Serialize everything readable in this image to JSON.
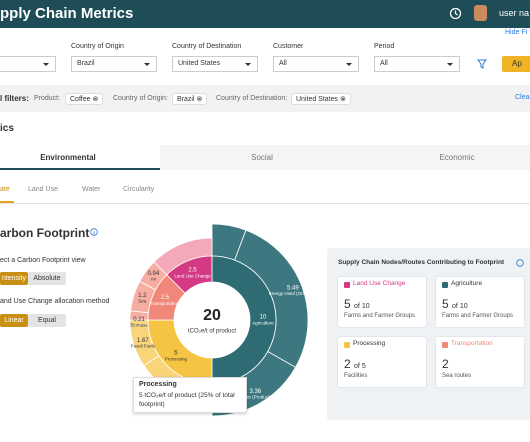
{
  "header": {
    "title": "pply Chain Metrics",
    "user": "user na"
  },
  "filters": {
    "hide": "Hide Fi",
    "fields": [
      {
        "label": "",
        "value": ""
      },
      {
        "label": "Country of Origin",
        "value": "Brazil"
      },
      {
        "label": "Country of Destination",
        "value": "United States"
      },
      {
        "label": "Customer",
        "value": "All"
      },
      {
        "label": "Period",
        "value": "All"
      }
    ],
    "apply": "Ap"
  },
  "applied": {
    "title": "l filters:",
    "chips": [
      {
        "key": "Product:",
        "value": "Coffee"
      },
      {
        "key": "Country of Origin:",
        "value": "Brazil"
      },
      {
        "key": "Country of Destination:",
        "value": "United States"
      }
    ],
    "clear": "Clea"
  },
  "section": "ics",
  "tabs": [
    "Environmental",
    "Social",
    "Economic"
  ],
  "subtabs": [
    "ate",
    "Land Use",
    "Water",
    "Circularity"
  ],
  "footprint": {
    "title": "arbon Footprint",
    "view_label": "ect a Carbon Footprint view",
    "view_options": [
      "ntensity",
      "Absolute"
    ],
    "method_label": "and Use Change allocation method",
    "method_options": [
      "Linear",
      "Equal"
    ]
  },
  "sunburst": {
    "total": "20",
    "unit": "tCO₂e/t of product",
    "segments": [
      {
        "label": "Agriculture",
        "value": 10,
        "color": "#2f6b73",
        "outer": "#3d7880",
        "children": [
          {
            "label": "Energy Used (On Farm)",
            "value": 5.49
          },
          {
            "label": "Fertiliser (Production)",
            "value": 3.36
          }
        ]
      },
      {
        "label": "Processing",
        "value": 5,
        "color": "#f6c443",
        "outer": "#f9d57a",
        "children": [
          {
            "label": "Fossil Fuels",
            "value": 1.67
          },
          {
            "label": "Biomass",
            "value": 0.21
          }
        ]
      },
      {
        "label": "Transportation",
        "value": 2.5,
        "color": "#f08778",
        "outer": "#f6aea3",
        "children": [
          {
            "label": "Sea",
            "value": 1.2
          },
          {
            "label": "Air",
            "value": 0.94
          }
        ]
      },
      {
        "label": "Land Use Change",
        "value": 2.5,
        "color": "#d33a83",
        "outer": "#f4a9b8",
        "children": []
      }
    ]
  },
  "tooltip": {
    "title": "Processing",
    "body": "5 tCO₂e/t of product (25% of total footprint)"
  },
  "panel": {
    "title": "Supply Chain Nodes/Routes Contributing to Footprint",
    "cards": [
      {
        "label": "Land Use Change",
        "count": "5",
        "of": "of 10",
        "note": "Farms and Farmer Groups"
      },
      {
        "label": "Agriculture",
        "count": "5",
        "of": "of 10",
        "note": "Farms and Farmer Groups"
      },
      {
        "label": "Processing",
        "count": "2",
        "of": "of 5",
        "note": "Facilities"
      },
      {
        "label": "Transportation",
        "count": "2",
        "of": "",
        "note": "Sea routes"
      }
    ]
  }
}
